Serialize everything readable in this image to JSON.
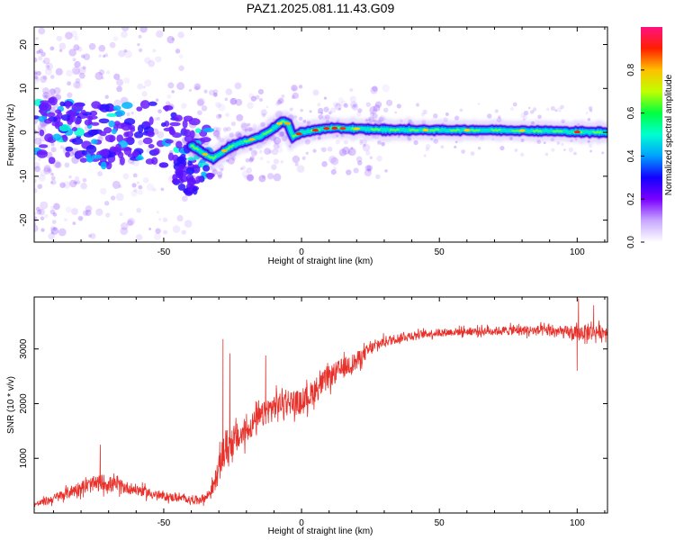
{
  "title": "PAZ1.2025.081.11.43.G09",
  "colors": {
    "axis": "#000000",
    "snr_line": "#e8302a",
    "track_core": "#ff2a00",
    "track_mid": "#00e6c8",
    "track_edge": "#4b00e6",
    "scatter": "#9a5cff"
  },
  "chart_data": [
    {
      "type": "heatmap",
      "xlabel": "Height of straight line (km)",
      "ylabel": "Frequency (Hz)",
      "xlim": [
        -97,
        111
      ],
      "ylim": [
        -25,
        24
      ],
      "xticks": [
        -50,
        0,
        50,
        100
      ],
      "yticks": [
        -20,
        -10,
        0,
        10,
        20
      ],
      "colorbar": {
        "label": "Normalized spectral amplitude",
        "range": [
          0,
          1
        ],
        "ticks": [
          0.0,
          0.2,
          0.4,
          0.6,
          0.8
        ],
        "colormap": [
          "#ffffff",
          "#c8a8ff",
          "#7a00ff",
          "#1400ff",
          "#00a0ff",
          "#00ffd0",
          "#00ff40",
          "#c0ff00",
          "#ffc000",
          "#ff2000",
          "#ff1080"
        ]
      },
      "ridge": {
        "x": [
          -95,
          -85,
          -75,
          -65,
          -55,
          -45,
          -40,
          -35,
          -32,
          -30,
          -25,
          -20,
          -15,
          -10,
          -7,
          -5,
          -3,
          0,
          5,
          10,
          20,
          30,
          50,
          70,
          90,
          100,
          111
        ],
        "freq": [
          1,
          0,
          -0.5,
          -1,
          0,
          -1,
          -3,
          -5,
          -6,
          -5,
          -3,
          -2,
          -1,
          1,
          2.5,
          2,
          -1,
          0,
          0.5,
          1,
          0.8,
          0.6,
          0.5,
          0.5,
          0.3,
          0.1,
          0
        ]
      },
      "grid": false
    },
    {
      "type": "line",
      "xlabel": "Height of straight line (km)",
      "ylabel": "SNR (10 * v/v)",
      "xlim": [
        -97,
        111
      ],
      "ylim": [
        0,
        3950
      ],
      "xticks": [
        -50,
        0,
        50,
        100
      ],
      "yticks": [
        1000,
        2000,
        3000
      ],
      "series": [
        {
          "x": [
            -97,
            -90,
            -80,
            -72,
            -65,
            -60,
            -55,
            -50,
            -45,
            -40,
            -35,
            -32,
            -30,
            -28,
            -25,
            -22,
            -20,
            -15,
            -10,
            -5,
            0,
            5,
            10,
            15,
            20,
            25,
            30,
            40,
            50,
            60,
            70,
            80,
            90,
            100,
            105,
            111
          ],
          "y": [
            150,
            260,
            470,
            560,
            480,
            430,
            360,
            300,
            280,
            240,
            260,
            480,
            800,
            1150,
            1320,
            1400,
            1520,
            1750,
            1950,
            2050,
            2000,
            2260,
            2480,
            2650,
            2780,
            3000,
            3140,
            3250,
            3300,
            3320,
            3330,
            3340,
            3330,
            3280,
            3320,
            3320
          ],
          "noise": [
            80,
            140,
            220,
            260,
            200,
            170,
            160,
            130,
            120,
            110,
            130,
            250,
            420,
            600,
            480,
            450,
            400,
            380,
            380,
            380,
            380,
            380,
            350,
            320,
            280,
            200,
            160,
            130,
            120,
            120,
            130,
            150,
            170,
            220,
            250,
            200
          ],
          "spikes": [
            {
              "x": -73,
              "y": 1250
            },
            {
              "x": -28.5,
              "y": 3180
            },
            {
              "x": -26,
              "y": 2920
            },
            {
              "x": -13,
              "y": 2880
            },
            {
              "x": 100.5,
              "y": 3920
            },
            {
              "x": 100,
              "y": 2600
            },
            {
              "x": 106,
              "y": 3800
            }
          ]
        }
      ],
      "grid": false
    }
  ]
}
